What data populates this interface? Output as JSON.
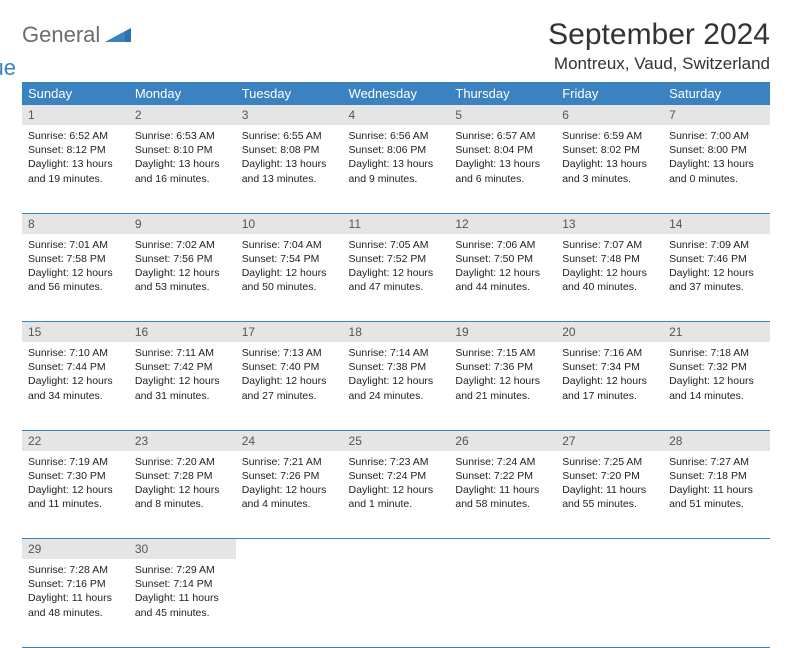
{
  "brand": {
    "part1": "General",
    "part2": "Blue"
  },
  "header": {
    "month_title": "September 2024",
    "location": "Montreux, Vaud, Switzerland"
  },
  "colors": {
    "accent": "#3b83c0",
    "daynum_bg": "#e5e5e5",
    "text": "#222222"
  },
  "weekdays": [
    "Sunday",
    "Monday",
    "Tuesday",
    "Wednesday",
    "Thursday",
    "Friday",
    "Saturday"
  ],
  "weeks": [
    [
      {
        "n": "1",
        "sr": "6:52 AM",
        "ss": "8:12 PM",
        "dl": "13 hours and 19 minutes."
      },
      {
        "n": "2",
        "sr": "6:53 AM",
        "ss": "8:10 PM",
        "dl": "13 hours and 16 minutes."
      },
      {
        "n": "3",
        "sr": "6:55 AM",
        "ss": "8:08 PM",
        "dl": "13 hours and 13 minutes."
      },
      {
        "n": "4",
        "sr": "6:56 AM",
        "ss": "8:06 PM",
        "dl": "13 hours and 9 minutes."
      },
      {
        "n": "5",
        "sr": "6:57 AM",
        "ss": "8:04 PM",
        "dl": "13 hours and 6 minutes."
      },
      {
        "n": "6",
        "sr": "6:59 AM",
        "ss": "8:02 PM",
        "dl": "13 hours and 3 minutes."
      },
      {
        "n": "7",
        "sr": "7:00 AM",
        "ss": "8:00 PM",
        "dl": "13 hours and 0 minutes."
      }
    ],
    [
      {
        "n": "8",
        "sr": "7:01 AM",
        "ss": "7:58 PM",
        "dl": "12 hours and 56 minutes."
      },
      {
        "n": "9",
        "sr": "7:02 AM",
        "ss": "7:56 PM",
        "dl": "12 hours and 53 minutes."
      },
      {
        "n": "10",
        "sr": "7:04 AM",
        "ss": "7:54 PM",
        "dl": "12 hours and 50 minutes."
      },
      {
        "n": "11",
        "sr": "7:05 AM",
        "ss": "7:52 PM",
        "dl": "12 hours and 47 minutes."
      },
      {
        "n": "12",
        "sr": "7:06 AM",
        "ss": "7:50 PM",
        "dl": "12 hours and 44 minutes."
      },
      {
        "n": "13",
        "sr": "7:07 AM",
        "ss": "7:48 PM",
        "dl": "12 hours and 40 minutes."
      },
      {
        "n": "14",
        "sr": "7:09 AM",
        "ss": "7:46 PM",
        "dl": "12 hours and 37 minutes."
      }
    ],
    [
      {
        "n": "15",
        "sr": "7:10 AM",
        "ss": "7:44 PM",
        "dl": "12 hours and 34 minutes."
      },
      {
        "n": "16",
        "sr": "7:11 AM",
        "ss": "7:42 PM",
        "dl": "12 hours and 31 minutes."
      },
      {
        "n": "17",
        "sr": "7:13 AM",
        "ss": "7:40 PM",
        "dl": "12 hours and 27 minutes."
      },
      {
        "n": "18",
        "sr": "7:14 AM",
        "ss": "7:38 PM",
        "dl": "12 hours and 24 minutes."
      },
      {
        "n": "19",
        "sr": "7:15 AM",
        "ss": "7:36 PM",
        "dl": "12 hours and 21 minutes."
      },
      {
        "n": "20",
        "sr": "7:16 AM",
        "ss": "7:34 PM",
        "dl": "12 hours and 17 minutes."
      },
      {
        "n": "21",
        "sr": "7:18 AM",
        "ss": "7:32 PM",
        "dl": "12 hours and 14 minutes."
      }
    ],
    [
      {
        "n": "22",
        "sr": "7:19 AM",
        "ss": "7:30 PM",
        "dl": "12 hours and 11 minutes."
      },
      {
        "n": "23",
        "sr": "7:20 AM",
        "ss": "7:28 PM",
        "dl": "12 hours and 8 minutes."
      },
      {
        "n": "24",
        "sr": "7:21 AM",
        "ss": "7:26 PM",
        "dl": "12 hours and 4 minutes."
      },
      {
        "n": "25",
        "sr": "7:23 AM",
        "ss": "7:24 PM",
        "dl": "12 hours and 1 minute."
      },
      {
        "n": "26",
        "sr": "7:24 AM",
        "ss": "7:22 PM",
        "dl": "11 hours and 58 minutes."
      },
      {
        "n": "27",
        "sr": "7:25 AM",
        "ss": "7:20 PM",
        "dl": "11 hours and 55 minutes."
      },
      {
        "n": "28",
        "sr": "7:27 AM",
        "ss": "7:18 PM",
        "dl": "11 hours and 51 minutes."
      }
    ],
    [
      {
        "n": "29",
        "sr": "7:28 AM",
        "ss": "7:16 PM",
        "dl": "11 hours and 48 minutes."
      },
      {
        "n": "30",
        "sr": "7:29 AM",
        "ss": "7:14 PM",
        "dl": "11 hours and 45 minutes."
      },
      null,
      null,
      null,
      null,
      null
    ]
  ],
  "labels": {
    "sunrise": "Sunrise:",
    "sunset": "Sunset:",
    "daylight": "Daylight:"
  }
}
